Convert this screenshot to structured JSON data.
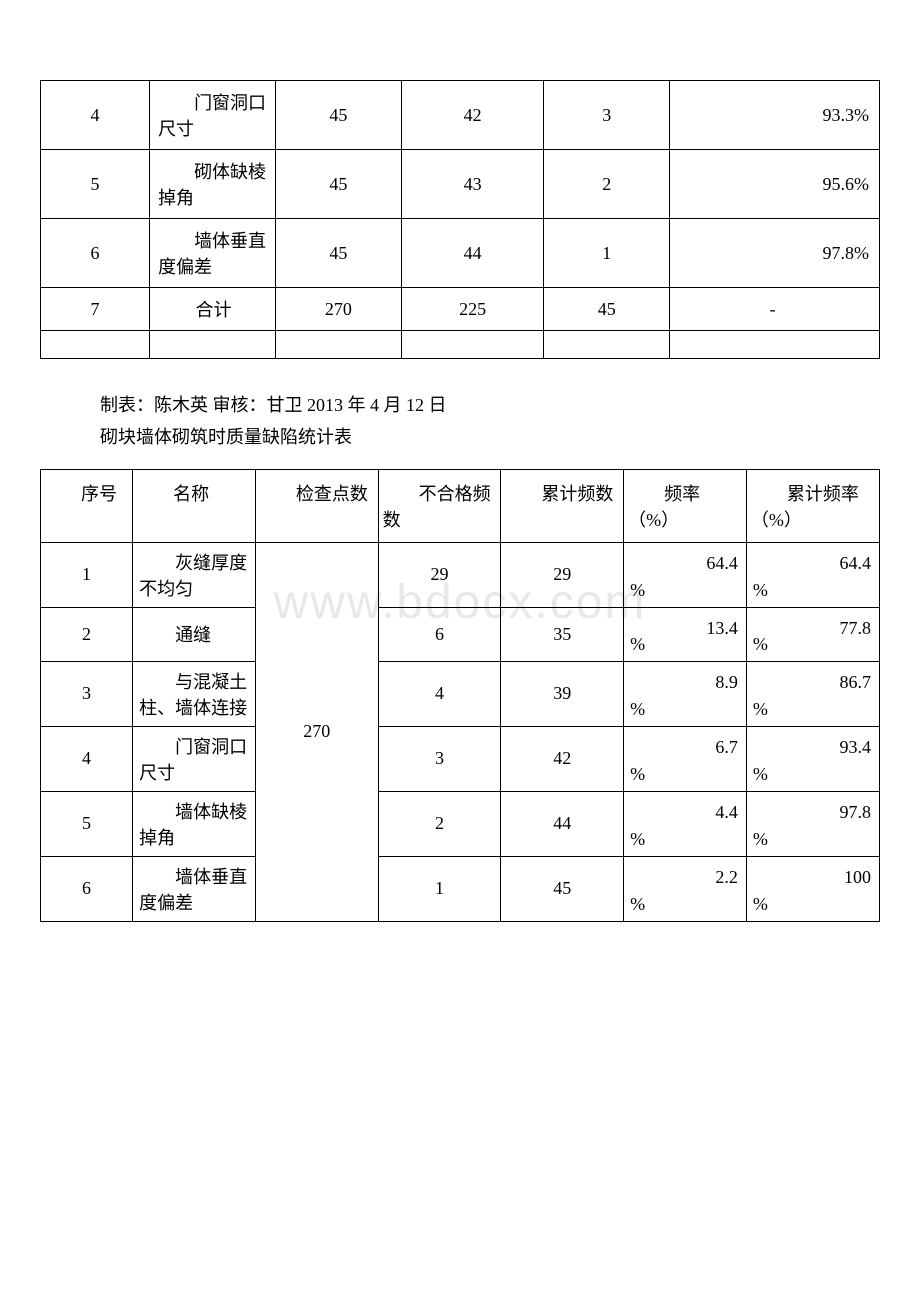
{
  "watermark": "www.bdocx.com",
  "table1": {
    "rows": [
      {
        "seq": "4",
        "name": "门窗洞口尺寸",
        "c3": "45",
        "c4": "42",
        "c5": "3",
        "c6": "93.3%"
      },
      {
        "seq": "5",
        "name": "砌体缺棱掉角",
        "c3": "45",
        "c4": "43",
        "c5": "2",
        "c6": "95.6%"
      },
      {
        "seq": "6",
        "name": "墙体垂直度偏差",
        "c3": "45",
        "c4": "44",
        "c5": "1",
        "c6": "97.8%"
      },
      {
        "seq": "7",
        "name": "合计",
        "c3": "270",
        "c4": "225",
        "c5": "45",
        "c6": "-"
      }
    ]
  },
  "meta_line": "制表：陈木英 审核：甘卫 2013 年 4 月 12 日",
  "table2_title": "砌块墙体砌筑时质量缺陷统计表",
  "table2": {
    "headers": {
      "seq": "序号",
      "name": "名称",
      "check": "检查点数",
      "fail": "不合格频数",
      "cumul": "累计频数",
      "freq": "频率（%）",
      "cumfreq": "累计频率（%）"
    },
    "check_value": "270",
    "rows": [
      {
        "seq": "1",
        "name": "灰缝厚度不均匀",
        "fail": "29",
        "cumul": "29",
        "freq": "64.4",
        "cumfreq": "64.4"
      },
      {
        "seq": "2",
        "name": "通缝",
        "fail": "6",
        "cumul": "35",
        "freq": "13.4",
        "cumfreq": "77.8"
      },
      {
        "seq": "3",
        "name": "与混凝土柱、墙体连接",
        "fail": "4",
        "cumul": "39",
        "freq": "8.9",
        "cumfreq": "86.7"
      },
      {
        "seq": "4",
        "name": "门窗洞口尺寸",
        "fail": "3",
        "cumul": "42",
        "freq": "6.7",
        "cumfreq": "93.4"
      },
      {
        "seq": "5",
        "name": "墙体缺棱掉角",
        "fail": "2",
        "cumul": "44",
        "freq": "4.4",
        "cumfreq": "97.8"
      },
      {
        "seq": "6",
        "name": "墙体垂直度偏差",
        "fail": "1",
        "cumul": "45",
        "freq": "2.2",
        "cumfreq": "100"
      }
    ]
  },
  "pct_sign": "%"
}
